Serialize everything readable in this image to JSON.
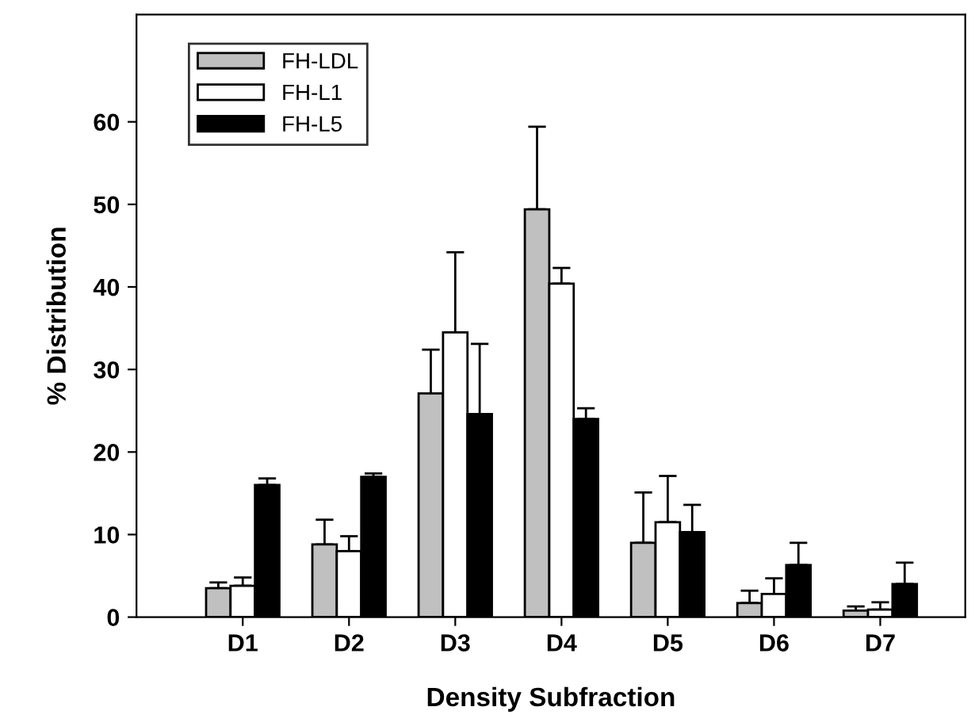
{
  "chart_data": {
    "type": "bar",
    "xlabel": "Density Subfraction",
    "ylabel": "% Distribution",
    "categories": [
      "D1",
      "D2",
      "D3",
      "D4",
      "D5",
      "D6",
      "D7"
    ],
    "series": [
      {
        "name": "FH-LDL",
        "color": "#c0c0c0",
        "values": [
          3.5,
          8.8,
          27.1,
          49.4,
          9.0,
          1.7,
          0.8
        ],
        "errors": [
          [
            3.5,
            4.2
          ],
          [
            8.8,
            11.8
          ],
          [
            27.1,
            32.4
          ],
          [
            49.4,
            59.4
          ],
          [
            9.0,
            15.1
          ],
          [
            1.7,
            3.2
          ],
          [
            0.8,
            1.3
          ]
        ]
      },
      {
        "name": "FH-L1",
        "color": "#ffffff",
        "values": [
          3.8,
          8.0,
          34.5,
          40.4,
          11.5,
          2.8,
          0.9
        ],
        "errors": [
          [
            3.8,
            4.8
          ],
          [
            8.0,
            9.8
          ],
          [
            34.5,
            44.2
          ],
          [
            40.4,
            42.3
          ],
          [
            11.5,
            17.1
          ],
          [
            2.8,
            4.7
          ],
          [
            0.9,
            1.8
          ]
        ]
      },
      {
        "name": "FH-L5",
        "color": "#000000",
        "values": [
          16.0,
          17.0,
          24.6,
          24.0,
          10.3,
          6.3,
          4.0
        ],
        "errors": [
          [
            16.0,
            16.8
          ],
          [
            17.0,
            17.4
          ],
          [
            24.6,
            33.1
          ],
          [
            24.0,
            25.3
          ],
          [
            10.3,
            13.6
          ],
          [
            6.3,
            9.0
          ],
          [
            4.0,
            6.6
          ]
        ]
      }
    ],
    "ylim": [
      0,
      73
    ],
    "yticks": [
      0,
      10,
      20,
      30,
      40,
      50,
      60
    ],
    "grid": false,
    "legend": "top left"
  }
}
